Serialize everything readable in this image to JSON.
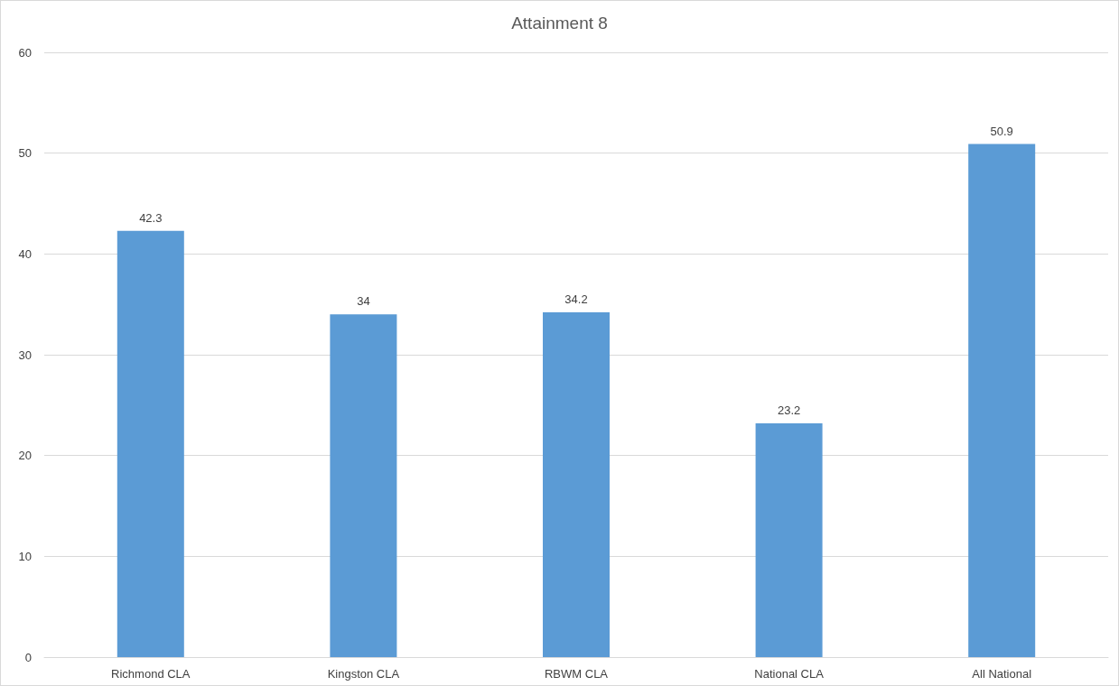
{
  "chart_data": {
    "type": "bar",
    "title": "Attainment 8",
    "categories": [
      "Richmond CLA",
      "Kingston CLA",
      "RBWM CLA",
      "National CLA",
      "All National"
    ],
    "values": [
      42.3,
      34,
      34.2,
      23.2,
      50.9
    ],
    "color": "#5b9bd5",
    "ylim": [
      0,
      60
    ],
    "yticks": [
      0,
      10,
      20,
      30,
      40,
      50,
      60
    ],
    "grid": "y",
    "data_labels": true
  }
}
